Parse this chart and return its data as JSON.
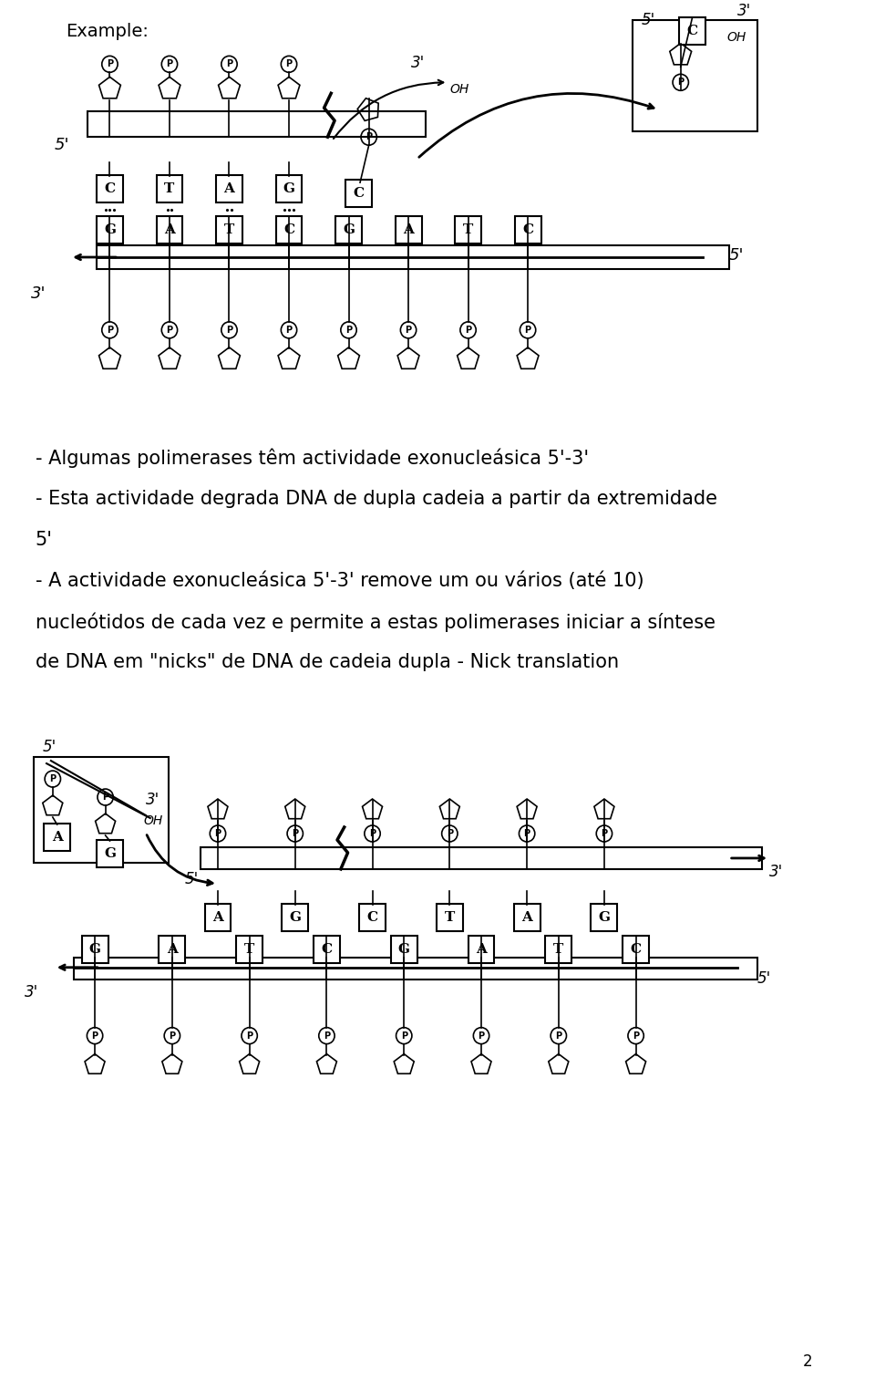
{
  "bg_color": "#ffffff",
  "text_color": "#000000",
  "title": "Example:",
  "line1": "- Algumas polimerases têm actividade exonucleásica 5'-3'",
  "line2": "- Esta actividade degrada DNA de dupla cadeia a partir da extremidade",
  "line2b": "5'",
  "line3": "- A actividade exonucleásica 5'-3' remove um ou vários (até 10)",
  "line3b": "nucleótidos de cada vez e permite a estas polimerases iniciar a síntese",
  "line3c": "de DNA em \"nicks\" de DNA de cadeia dupla - Nick translation",
  "page_number": "2",
  "top_bases_top": [
    "C",
    "T",
    "A",
    "G"
  ],
  "bottom_bases_top": [
    "G",
    "A",
    "T",
    "C",
    "G",
    "A",
    "T",
    "C"
  ],
  "detached_base_top": "C",
  "top_bases_bottom": [
    "A",
    "G",
    "C",
    "T",
    "A",
    "G"
  ],
  "bottom_bases_bottom": [
    "G",
    "A",
    "T",
    "C",
    "G",
    "A",
    "T",
    "C"
  ],
  "detached_bases_bottom": [
    "A",
    "G"
  ],
  "font_size_main": 15,
  "font_size_label": 12,
  "font_size_base": 11,
  "font_size_page": 12
}
